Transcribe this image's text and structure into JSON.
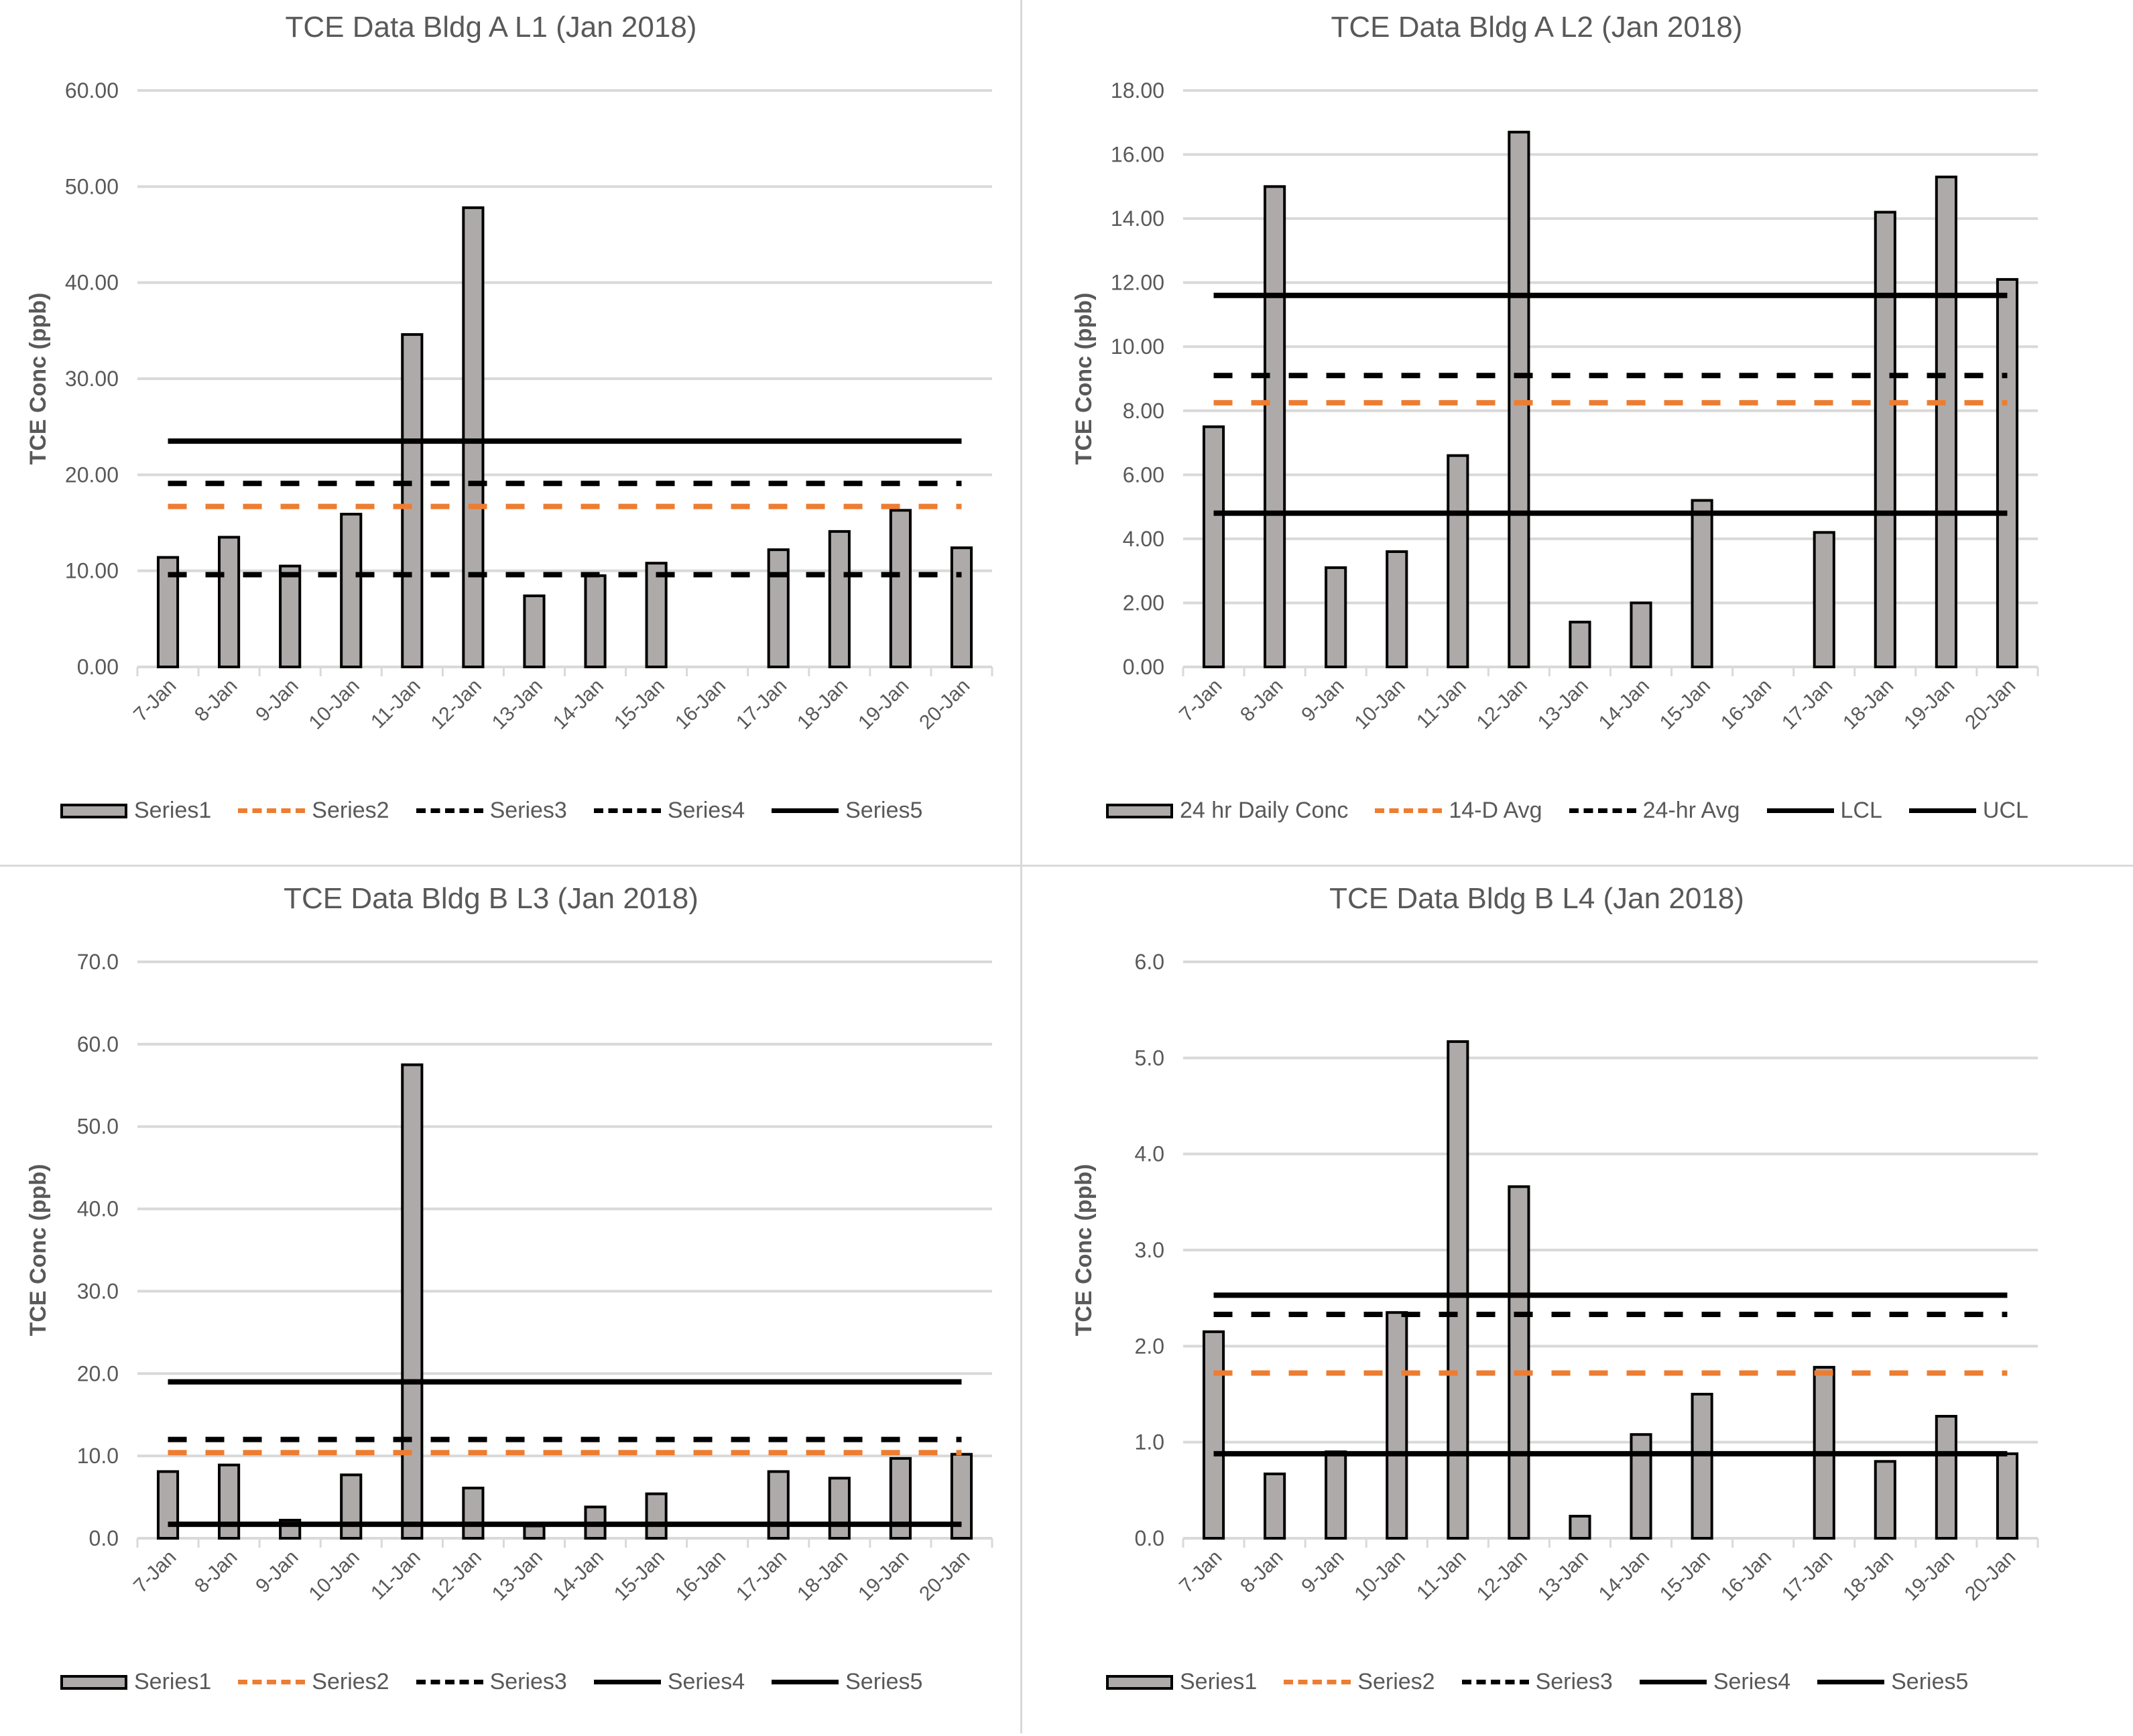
{
  "colors": {
    "bar": "#aeaaaa",
    "orange": "#ed7d31",
    "black": "#000000",
    "grid": "#d9d9d9",
    "text": "#595959"
  },
  "chart_data": [
    {
      "type": "bar",
      "title": "TCE Data Bldg A L1 (Jan 2018)",
      "ylabel": "TCE Conc (ppb)",
      "xlabel": "",
      "ylim": [
        0,
        60
      ],
      "yticks": [
        "0.00",
        "10.00",
        "20.00",
        "30.00",
        "40.00",
        "50.00",
        "60.00"
      ],
      "ystep": 10,
      "categories": [
        "7-Jan",
        "8-Jan",
        "9-Jan",
        "10-Jan",
        "11-Jan",
        "12-Jan",
        "13-Jan",
        "14-Jan",
        "15-Jan",
        "16-Jan",
        "17-Jan",
        "18-Jan",
        "19-Jan",
        "20-Jan"
      ],
      "series": [
        {
          "name": "Series1",
          "kind": "bar",
          "values": [
            11.4,
            13.5,
            10.5,
            15.9,
            34.6,
            47.8,
            7.4,
            9.5,
            10.8,
            null,
            12.2,
            14.1,
            16.3,
            12.4
          ]
        },
        {
          "name": "Series2",
          "kind": "orange-dash",
          "value": 16.7
        },
        {
          "name": "Series3",
          "kind": "black-dash",
          "value": 19.1
        },
        {
          "name": "Series4",
          "kind": "black-dash",
          "value": 9.6
        },
        {
          "name": "Series5",
          "kind": "solid",
          "value": 23.5
        }
      ],
      "legend_position": "bottom",
      "grid": true
    },
    {
      "type": "bar",
      "title": "TCE Data Bldg A L2 (Jan 2018)",
      "ylabel": "TCE Conc (ppb)",
      "xlabel": "",
      "ylim": [
        0,
        18
      ],
      "yticks": [
        "0.00",
        "2.00",
        "4.00",
        "6.00",
        "8.00",
        "10.00",
        "12.00",
        "14.00",
        "16.00",
        "18.00"
      ],
      "ystep": 2,
      "categories": [
        "7-Jan",
        "8-Jan",
        "9-Jan",
        "10-Jan",
        "11-Jan",
        "12-Jan",
        "13-Jan",
        "14-Jan",
        "15-Jan",
        "16-Jan",
        "17-Jan",
        "18-Jan",
        "19-Jan",
        "20-Jan"
      ],
      "series": [
        {
          "name": "24 hr Daily Conc",
          "kind": "bar",
          "values": [
            7.5,
            15.0,
            3.1,
            3.6,
            6.6,
            16.7,
            1.4,
            2.0,
            5.2,
            null,
            4.2,
            14.2,
            15.3,
            12.1
          ]
        },
        {
          "name": "14-D Avg",
          "kind": "orange-dash",
          "value": 8.25
        },
        {
          "name": "24-hr Avg",
          "kind": "black-dash",
          "value": 9.1
        },
        {
          "name": "LCL",
          "kind": "solid",
          "value": 4.8
        },
        {
          "name": "UCL",
          "kind": "solid",
          "value": 11.6
        }
      ],
      "legend_position": "bottom",
      "grid": true
    },
    {
      "type": "bar",
      "title": "TCE Data Bldg B L3 (Jan 2018)",
      "ylabel": "TCE Conc (ppb)",
      "xlabel": "",
      "ylim": [
        0,
        70
      ],
      "yticks": [
        "0.0",
        "10.0",
        "20.0",
        "30.0",
        "40.0",
        "50.0",
        "60.0",
        "70.0"
      ],
      "ystep": 10,
      "categories": [
        "7-Jan",
        "8-Jan",
        "9-Jan",
        "10-Jan",
        "11-Jan",
        "12-Jan",
        "13-Jan",
        "14-Jan",
        "15-Jan",
        "16-Jan",
        "17-Jan",
        "18-Jan",
        "19-Jan",
        "20-Jan"
      ],
      "series": [
        {
          "name": "Series1",
          "kind": "bar",
          "values": [
            8.1,
            8.9,
            2.2,
            7.7,
            57.5,
            6.1,
            1.5,
            3.8,
            5.4,
            null,
            8.1,
            7.3,
            9.7,
            10.2
          ]
        },
        {
          "name": "Series2",
          "kind": "orange-dash",
          "value": 10.4
        },
        {
          "name": "Series3",
          "kind": "black-dash",
          "value": 12.0
        },
        {
          "name": "Series4",
          "kind": "solid",
          "value": 1.7
        },
        {
          "name": "Series5",
          "kind": "solid",
          "value": 19.0
        }
      ],
      "legend_position": "bottom",
      "grid": true
    },
    {
      "type": "bar",
      "title": "TCE Data Bldg B L4 (Jan 2018)",
      "ylabel": "TCE Conc (ppb)",
      "xlabel": "",
      "ylim": [
        0,
        6
      ],
      "yticks": [
        "0.0",
        "1.0",
        "2.0",
        "3.0",
        "4.0",
        "5.0",
        "6.0"
      ],
      "ystep": 1,
      "categories": [
        "7-Jan",
        "8-Jan",
        "9-Jan",
        "10-Jan",
        "11-Jan",
        "12-Jan",
        "13-Jan",
        "14-Jan",
        "15-Jan",
        "16-Jan",
        "17-Jan",
        "18-Jan",
        "19-Jan",
        "20-Jan"
      ],
      "series": [
        {
          "name": "Series1",
          "kind": "bar",
          "values": [
            2.15,
            0.67,
            0.9,
            2.35,
            5.17,
            3.66,
            0.23,
            1.08,
            1.5,
            null,
            1.78,
            0.8,
            1.27,
            0.88
          ]
        },
        {
          "name": "Series2",
          "kind": "orange-dash",
          "value": 1.72
        },
        {
          "name": "Series3",
          "kind": "black-dash",
          "value": 2.33
        },
        {
          "name": "Series4",
          "kind": "solid",
          "value": 0.88
        },
        {
          "name": "Series5",
          "kind": "solid",
          "value": 2.53
        }
      ],
      "legend_position": "bottom",
      "grid": true
    }
  ]
}
